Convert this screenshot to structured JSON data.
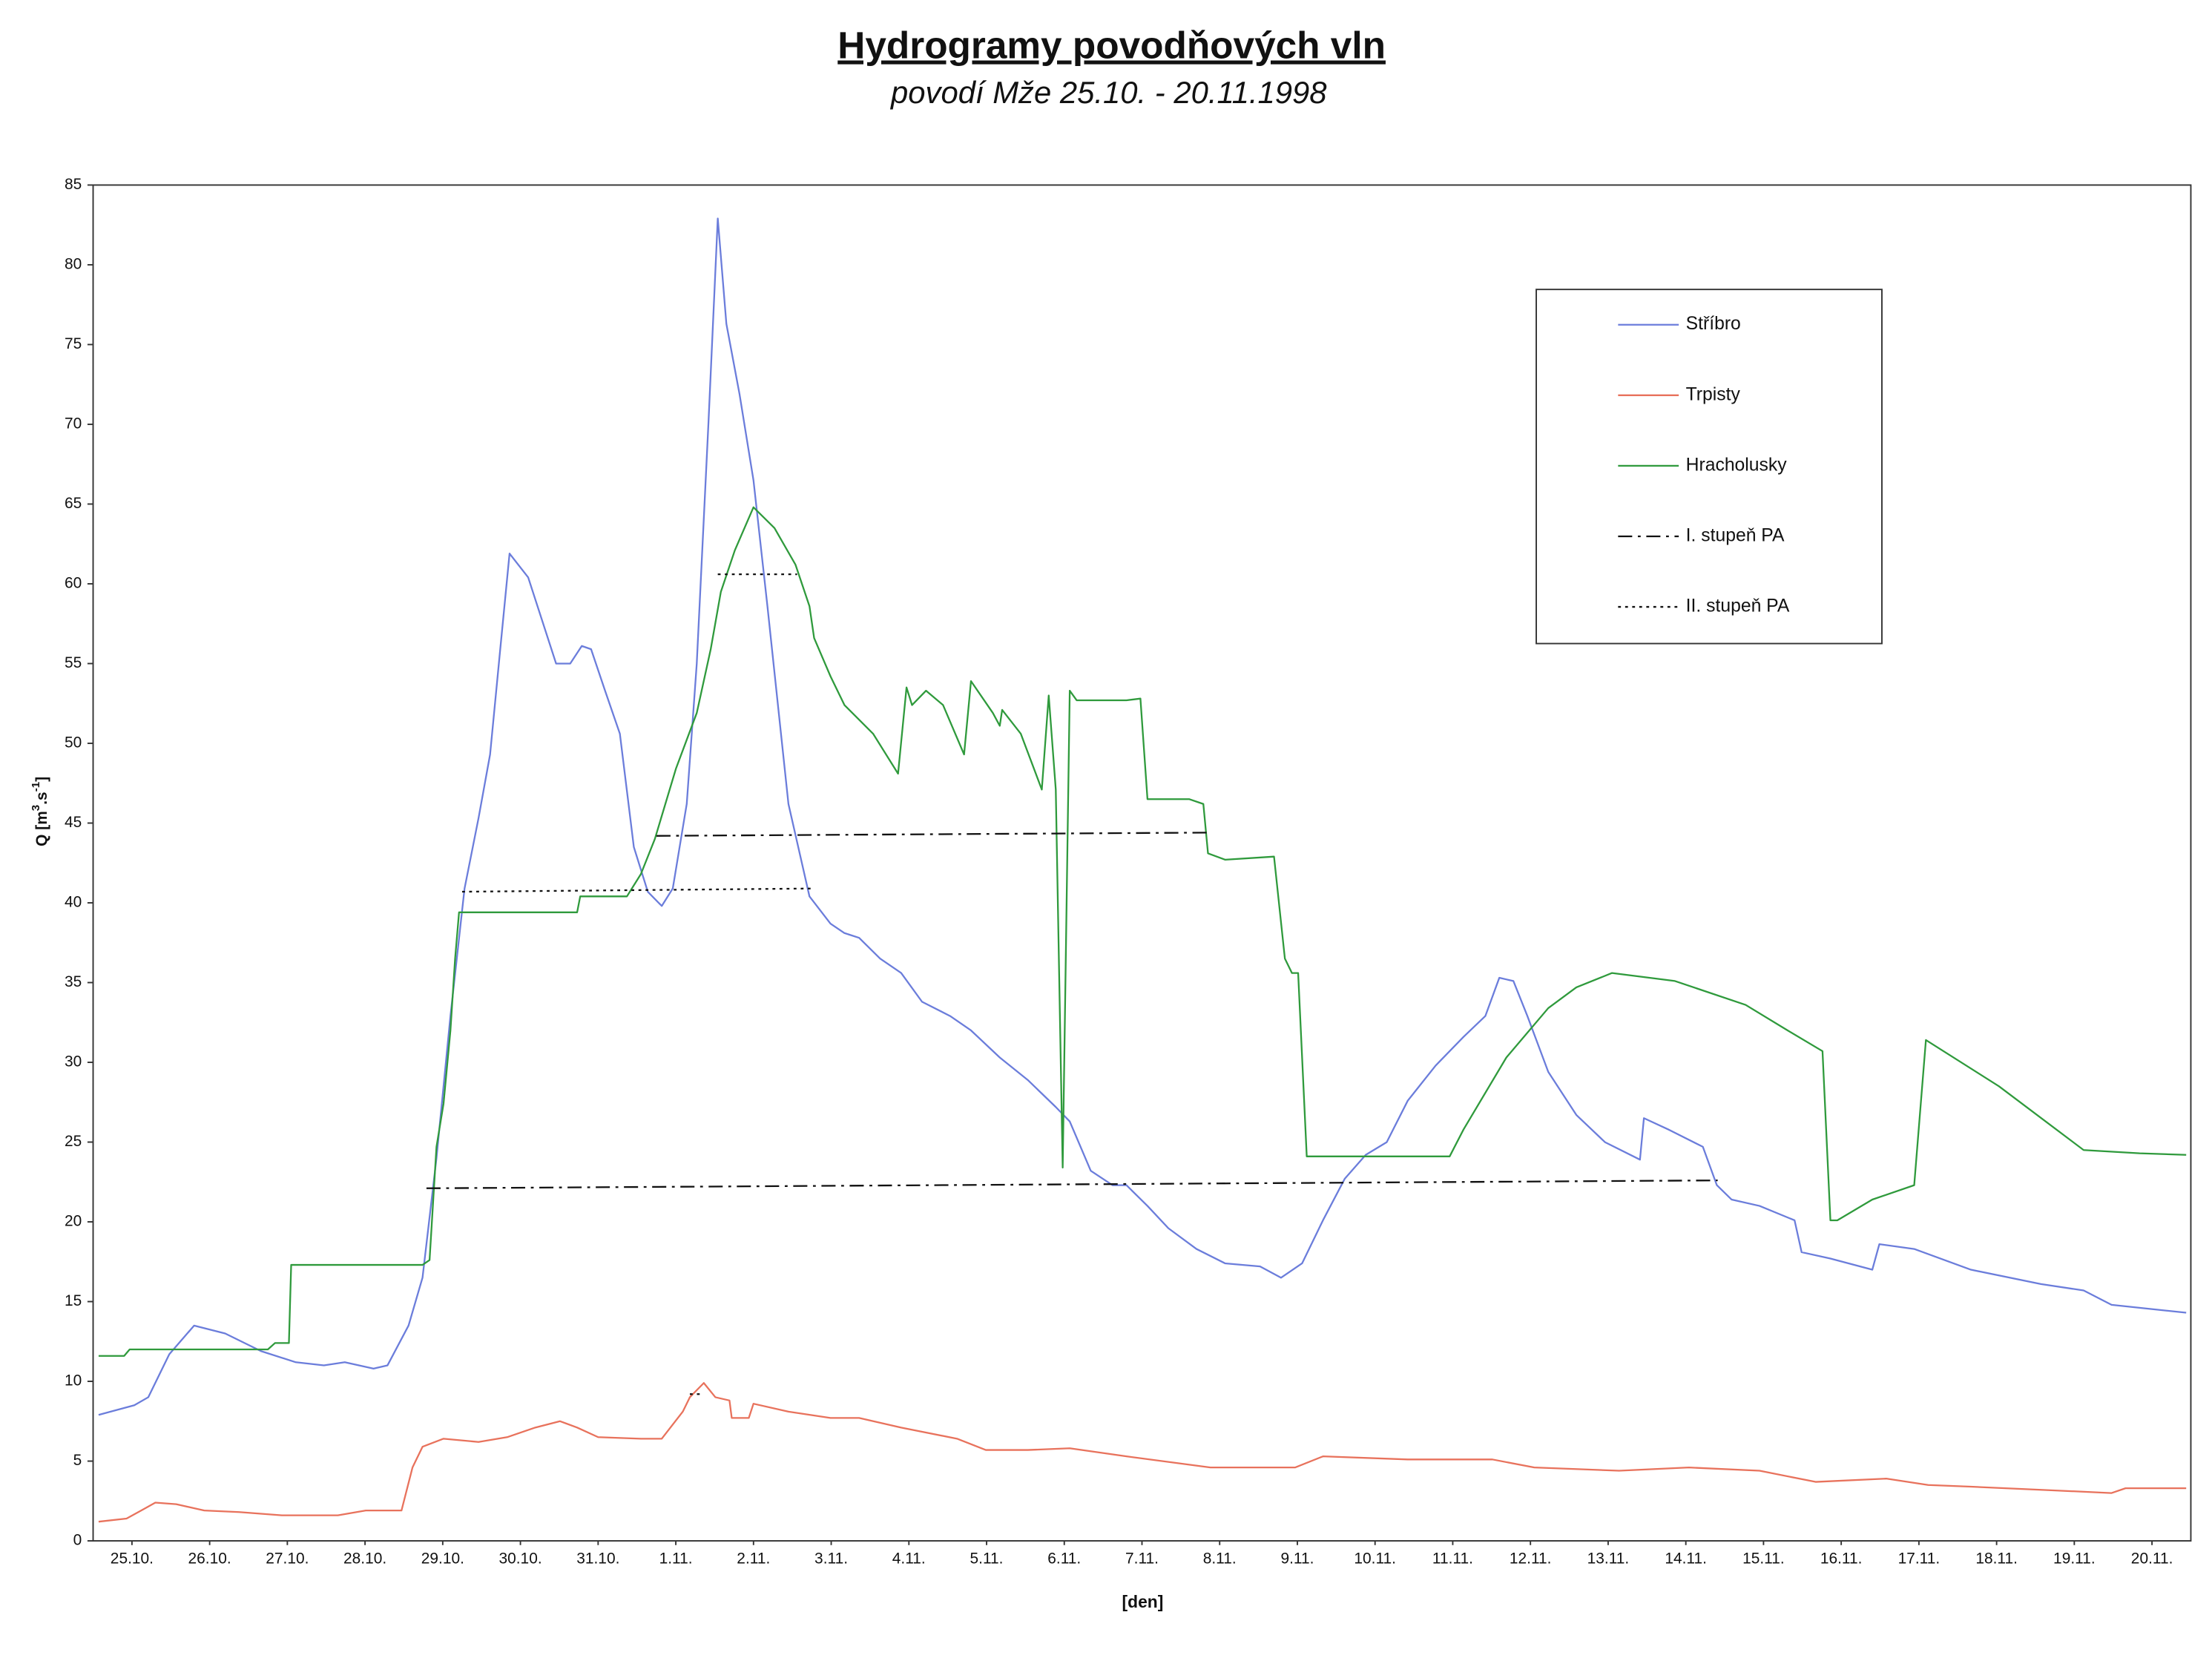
{
  "chart_data": {
    "type": "line",
    "title": "Hydrogramy povodňových vln",
    "subtitle": "povodí Mže 25.10. - 20.11.1998",
    "xlabel": "[den]",
    "ylabel": [
      "Q [m",
      "3",
      ".s",
      "-1",
      "]"
    ],
    "xlim": [
      0,
      27
    ],
    "ylim": [
      0,
      85
    ],
    "yticks": [
      0,
      5,
      10,
      15,
      20,
      25,
      30,
      35,
      40,
      45,
      50,
      55,
      60,
      65,
      70,
      75,
      80,
      85
    ],
    "xticks": [
      {
        "value": 0.5,
        "label": "25.10."
      },
      {
        "value": 1.5,
        "label": "26.10."
      },
      {
        "value": 2.5,
        "label": "27.10."
      },
      {
        "value": 3.5,
        "label": "28.10."
      },
      {
        "value": 4.5,
        "label": "29.10."
      },
      {
        "value": 5.5,
        "label": "30.10."
      },
      {
        "value": 6.5,
        "label": "31.10."
      },
      {
        "value": 7.5,
        "label": "1.11."
      },
      {
        "value": 8.5,
        "label": "2.11."
      },
      {
        "value": 9.5,
        "label": "3.11."
      },
      {
        "value": 10.5,
        "label": "4.11."
      },
      {
        "value": 11.5,
        "label": "5.11."
      },
      {
        "value": 12.5,
        "label": "6.11."
      },
      {
        "value": 13.5,
        "label": "7.11."
      },
      {
        "value": 14.5,
        "label": "8.11."
      },
      {
        "value": 15.5,
        "label": "9.11."
      },
      {
        "value": 16.5,
        "label": "10.11."
      },
      {
        "value": 17.5,
        "label": "11.11."
      },
      {
        "value": 18.5,
        "label": "12.11."
      },
      {
        "value": 19.5,
        "label": "13.11."
      },
      {
        "value": 20.5,
        "label": "14.11."
      },
      {
        "value": 21.5,
        "label": "15.11."
      },
      {
        "value": 22.5,
        "label": "16.11."
      },
      {
        "value": 23.5,
        "label": "17.11."
      },
      {
        "value": 24.5,
        "label": "18.11."
      },
      {
        "value": 25.5,
        "label": "19.11."
      },
      {
        "value": 26.5,
        "label": "20.11."
      }
    ],
    "legend": "upper right",
    "series": [
      {
        "name": "Stříbro",
        "color": "#6b7ddb",
        "style": "solid",
        "x": [
          0.07,
          0.53,
          0.71,
          0.98,
          1.3,
          1.7,
          2.16,
          2.61,
          2.97,
          3.24,
          3.61,
          3.79,
          4.06,
          4.24,
          4.42,
          4.6,
          4.78,
          4.96,
          5.11,
          5.24,
          5.36,
          5.6,
          5.96,
          6.14,
          6.29,
          6.41,
          6.59,
          6.78,
          6.96,
          7.14,
          7.32,
          7.46,
          7.64,
          7.77,
          7.92,
          8.04,
          8.15,
          8.32,
          8.5,
          8.68,
          8.95,
          9.22,
          9.49,
          9.67,
          9.86,
          10.13,
          10.4,
          10.67,
          11.03,
          11.3,
          11.67,
          12.03,
          12.39,
          12.57,
          12.84,
          13.12,
          13.3,
          13.57,
          13.84,
          14.2,
          14.57,
          15.02,
          15.29,
          15.56,
          15.83,
          16.11,
          16.38,
          16.65,
          16.92,
          17.28,
          17.64,
          17.92,
          18.1,
          18.28,
          18.46,
          18.73,
          19.09,
          19.46,
          19.91,
          19.96,
          20.27,
          20.72,
          20.9,
          21.09,
          21.45,
          21.9,
          21.99,
          22.36,
          22.9,
          22.99,
          23.44,
          24.17,
          25.07,
          25.62,
          25.98,
          26.94
        ],
        "values": [
          7.9,
          8.5,
          9.0,
          11.7,
          13.5,
          13.0,
          11.9,
          11.2,
          11.0,
          11.2,
          10.8,
          11.0,
          13.5,
          16.5,
          24.0,
          32.9,
          40.9,
          45.3,
          49.3,
          55.9,
          61.9,
          60.4,
          55.0,
          55.0,
          56.1,
          55.9,
          53.3,
          50.6,
          43.5,
          40.7,
          39.8,
          40.9,
          46.2,
          55.0,
          70.1,
          82.9,
          76.3,
          71.9,
          66.5,
          58.6,
          46.2,
          40.4,
          38.7,
          38.1,
          37.8,
          36.5,
          35.6,
          33.8,
          32.9,
          32.0,
          30.3,
          28.9,
          27.2,
          26.3,
          23.2,
          22.3,
          22.3,
          21.0,
          19.6,
          18.3,
          17.4,
          17.2,
          16.5,
          17.4,
          20.1,
          22.7,
          24.2,
          25.0,
          27.6,
          29.8,
          31.6,
          32.9,
          35.3,
          35.1,
          32.9,
          29.4,
          26.7,
          25.0,
          23.9,
          26.5,
          25.8,
          24.7,
          22.3,
          21.4,
          21.0,
          20.1,
          18.1,
          17.7,
          17.0,
          18.6,
          18.3,
          17.0,
          16.1,
          15.7,
          14.8,
          14.3
        ]
      },
      {
        "name": "Trpisty",
        "color": "#e8725c",
        "style": "solid",
        "x": [
          0.07,
          0.43,
          0.62,
          0.8,
          1.07,
          1.43,
          1.88,
          2.43,
          3.15,
          3.51,
          3.97,
          4.11,
          4.24,
          4.51,
          4.96,
          5.33,
          5.69,
          6.01,
          6.23,
          6.5,
          7.05,
          7.32,
          7.59,
          7.68,
          7.86,
          8.01,
          8.19,
          8.22,
          8.44,
          8.5,
          8.95,
          9.49,
          9.86,
          10.4,
          11.12,
          11.49,
          12.03,
          12.57,
          13.3,
          14.38,
          15.47,
          15.83,
          16.92,
          18.01,
          18.55,
          19.64,
          20.54,
          21.45,
          22.17,
          23.08,
          23.62,
          24.17,
          25.07,
          25.98,
          26.16,
          26.94
        ],
        "values": [
          1.2,
          1.4,
          1.9,
          2.4,
          2.3,
          1.9,
          1.8,
          1.6,
          1.6,
          1.9,
          1.9,
          4.6,
          5.9,
          6.4,
          6.2,
          6.5,
          7.1,
          7.5,
          7.1,
          6.5,
          6.4,
          6.4,
          8.1,
          9.0,
          9.9,
          9.0,
          8.8,
          7.7,
          7.7,
          8.6,
          8.1,
          7.7,
          7.7,
          7.1,
          6.4,
          5.7,
          5.7,
          5.8,
          5.3,
          4.6,
          4.6,
          5.3,
          5.1,
          5.1,
          4.6,
          4.4,
          4.6,
          4.4,
          3.7,
          3.9,
          3.5,
          3.4,
          3.2,
          3.0,
          3.3,
          3.3
        ]
      },
      {
        "name": "Hracholusky",
        "color": "#2f9a3c",
        "style": "solid",
        "x": [
          0.07,
          0.4,
          0.47,
          2.25,
          2.34,
          2.52,
          2.55,
          4.24,
          4.33,
          4.42,
          4.51,
          4.6,
          4.66,
          4.71,
          6.23,
          6.27,
          6.87,
          7.05,
          7.23,
          7.5,
          7.77,
          7.95,
          8.08,
          8.26,
          8.5,
          8.77,
          9.04,
          9.22,
          9.28,
          9.49,
          9.67,
          10.04,
          10.36,
          10.47,
          10.54,
          10.72,
          10.94,
          11.21,
          11.3,
          11.58,
          11.67,
          11.7,
          11.94,
          12.21,
          12.3,
          12.39,
          12.48,
          12.57,
          12.66,
          13.3,
          13.48,
          13.57,
          14.11,
          14.29,
          14.35,
          14.57,
          15.2,
          15.34,
          15.43,
          15.51,
          15.62,
          17.46,
          17.64,
          18.19,
          18.73,
          19.09,
          19.55,
          20.36,
          21.27,
          21.81,
          22.26,
          22.36,
          22.45,
          22.9,
          23.44,
          23.59,
          24.53,
          25.62,
          26.34,
          26.94
        ],
        "values": [
          11.6,
          11.6,
          12.0,
          12.0,
          12.4,
          12.4,
          17.3,
          17.3,
          17.6,
          24.7,
          27.4,
          32.0,
          36.5,
          39.4,
          39.4,
          40.4,
          40.4,
          41.8,
          44.0,
          48.4,
          51.9,
          55.9,
          59.5,
          62.1,
          64.8,
          63.5,
          61.2,
          58.6,
          56.6,
          54.2,
          52.4,
          50.6,
          48.1,
          53.5,
          52.4,
          53.3,
          52.4,
          49.3,
          53.9,
          51.9,
          51.1,
          52.1,
          50.6,
          47.1,
          53.0,
          47.1,
          23.4,
          53.3,
          52.7,
          52.7,
          52.8,
          46.5,
          46.5,
          46.2,
          43.1,
          42.7,
          42.9,
          36.5,
          35.6,
          35.6,
          24.1,
          24.1,
          25.8,
          30.3,
          33.4,
          34.7,
          35.6,
          35.1,
          33.6,
          32.0,
          30.7,
          20.1,
          20.1,
          21.4,
          22.3,
          31.4,
          28.5,
          24.5,
          24.3,
          24.2
        ]
      },
      {
        "name": "I. stupeň PA",
        "color": "#111111",
        "style": "dash-dot",
        "x": [
          4.29,
          20.91,
          null,
          7.25,
          14.35
        ],
        "values": [
          22.1,
          22.6,
          null,
          44.2,
          44.4
        ]
      },
      {
        "name": "II. stupeň PA",
        "color": "#111111",
        "style": "dotted",
        "x": [
          4.75,
          9.28,
          null,
          8.04,
          9.06,
          null,
          7.68,
          7.86
        ],
        "values": [
          40.7,
          40.9,
          null,
          60.6,
          60.6,
          null,
          9.2,
          9.2
        ]
      }
    ]
  }
}
